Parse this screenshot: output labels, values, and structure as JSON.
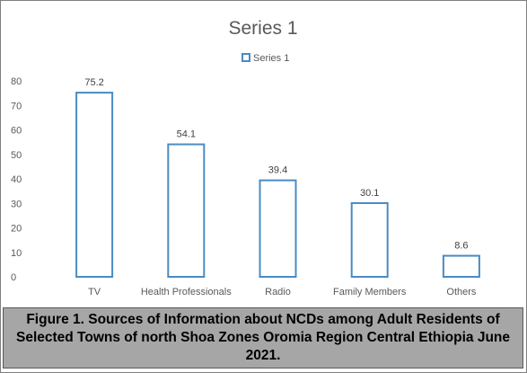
{
  "chart_data": {
    "type": "bar",
    "title": "Series 1",
    "categories": [
      "TV",
      "Health Professionals",
      "Radio",
      "Family Members",
      "Others"
    ],
    "series": [
      {
        "name": "Series 1",
        "values": [
          75.2,
          54.1,
          39.4,
          30.1,
          8.6
        ]
      }
    ],
    "data_labels": [
      "75.2",
      "54.1",
      "39.4",
      "30.1",
      "8.6"
    ],
    "yticks": [
      "0",
      "10",
      "20",
      "30",
      "40",
      "50",
      "60",
      "70",
      "80"
    ],
    "ylim": [
      0,
      80
    ],
    "grid": false,
    "legend_position": "top",
    "bar_style": "outline",
    "bar_outline_color": "#4a8bc4",
    "bar_fill_color": "#ffffff",
    "text_color": "#595959"
  },
  "caption": {
    "text": "Figure 1. Sources of Information about NCDs among Adult Residents of Selected Towns of north Shoa Zones Oromia Region Central Ethiopia June 2021.",
    "background_color": "#a6a6a6"
  }
}
